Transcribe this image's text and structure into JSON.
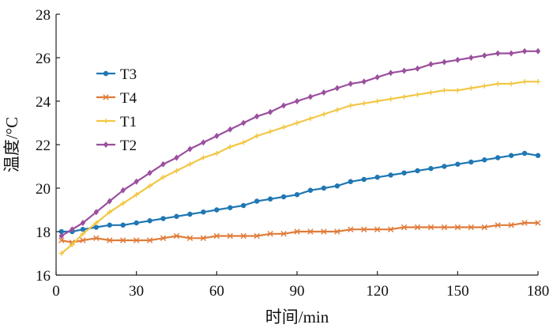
{
  "chart_data": {
    "type": "line",
    "title": "",
    "xlabel": "时间/min",
    "ylabel": "温度/°C",
    "xlim": [
      0,
      180
    ],
    "ylim": [
      16,
      28
    ],
    "xticks": [
      0,
      30,
      60,
      90,
      120,
      150,
      180
    ],
    "yticks": [
      16,
      18,
      20,
      22,
      24,
      26,
      28
    ],
    "grid": false,
    "legend_position": "upper-left",
    "series": [
      {
        "name": "T3",
        "color": "#1f77b4",
        "marker": "circle",
        "x": [
          2,
          6,
          10,
          15,
          20,
          25,
          30,
          35,
          40,
          45,
          50,
          55,
          60,
          65,
          70,
          75,
          80,
          85,
          90,
          95,
          100,
          105,
          110,
          115,
          120,
          125,
          130,
          135,
          140,
          145,
          150,
          155,
          160,
          165,
          170,
          175,
          180
        ],
        "y": [
          18.0,
          18.0,
          18.1,
          18.2,
          18.3,
          18.3,
          18.4,
          18.5,
          18.6,
          18.7,
          18.8,
          18.9,
          19.0,
          19.1,
          19.2,
          19.4,
          19.5,
          19.6,
          19.7,
          19.9,
          20.0,
          20.1,
          20.3,
          20.4,
          20.5,
          20.6,
          20.7,
          20.8,
          20.9,
          21.0,
          21.1,
          21.2,
          21.3,
          21.4,
          21.5,
          21.6,
          21.5
        ]
      },
      {
        "name": "T4",
        "color": "#e07b39",
        "marker": "x",
        "x": [
          2,
          6,
          10,
          15,
          20,
          25,
          30,
          35,
          40,
          45,
          50,
          55,
          60,
          65,
          70,
          75,
          80,
          85,
          90,
          95,
          100,
          105,
          110,
          115,
          120,
          125,
          130,
          135,
          140,
          145,
          150,
          155,
          160,
          165,
          170,
          175,
          180
        ],
        "y": [
          17.6,
          17.5,
          17.6,
          17.7,
          17.6,
          17.6,
          17.6,
          17.6,
          17.7,
          17.8,
          17.7,
          17.7,
          17.8,
          17.8,
          17.8,
          17.8,
          17.9,
          17.9,
          18.0,
          18.0,
          18.0,
          18.0,
          18.1,
          18.1,
          18.1,
          18.1,
          18.2,
          18.2,
          18.2,
          18.2,
          18.2,
          18.2,
          18.2,
          18.3,
          18.3,
          18.4,
          18.4
        ]
      },
      {
        "name": "T1",
        "color": "#f2c744",
        "marker": "plus",
        "x": [
          2,
          6,
          10,
          15,
          20,
          25,
          30,
          35,
          40,
          45,
          50,
          55,
          60,
          65,
          70,
          75,
          80,
          85,
          90,
          95,
          100,
          105,
          110,
          115,
          120,
          125,
          130,
          135,
          140,
          145,
          150,
          155,
          160,
          165,
          170,
          175,
          180
        ],
        "y": [
          17.0,
          17.4,
          17.9,
          18.4,
          18.9,
          19.3,
          19.7,
          20.1,
          20.5,
          20.8,
          21.1,
          21.4,
          21.6,
          21.9,
          22.1,
          22.4,
          22.6,
          22.8,
          23.0,
          23.2,
          23.4,
          23.6,
          23.8,
          23.9,
          24.0,
          24.1,
          24.2,
          24.3,
          24.4,
          24.5,
          24.5,
          24.6,
          24.7,
          24.8,
          24.8,
          24.9,
          24.9
        ]
      },
      {
        "name": "T2",
        "color": "#9b4f9e",
        "marker": "diamond",
        "x": [
          2,
          6,
          10,
          15,
          20,
          25,
          30,
          35,
          40,
          45,
          50,
          55,
          60,
          65,
          70,
          75,
          80,
          85,
          90,
          95,
          100,
          105,
          110,
          115,
          120,
          125,
          130,
          135,
          140,
          145,
          150,
          155,
          160,
          165,
          170,
          175,
          180
        ],
        "y": [
          17.8,
          18.1,
          18.4,
          18.9,
          19.4,
          19.9,
          20.3,
          20.7,
          21.1,
          21.4,
          21.8,
          22.1,
          22.4,
          22.7,
          23.0,
          23.3,
          23.5,
          23.8,
          24.0,
          24.2,
          24.4,
          24.6,
          24.8,
          24.9,
          25.1,
          25.3,
          25.4,
          25.5,
          25.7,
          25.8,
          25.9,
          26.0,
          26.1,
          26.2,
          26.2,
          26.3,
          26.3
        ]
      }
    ]
  }
}
